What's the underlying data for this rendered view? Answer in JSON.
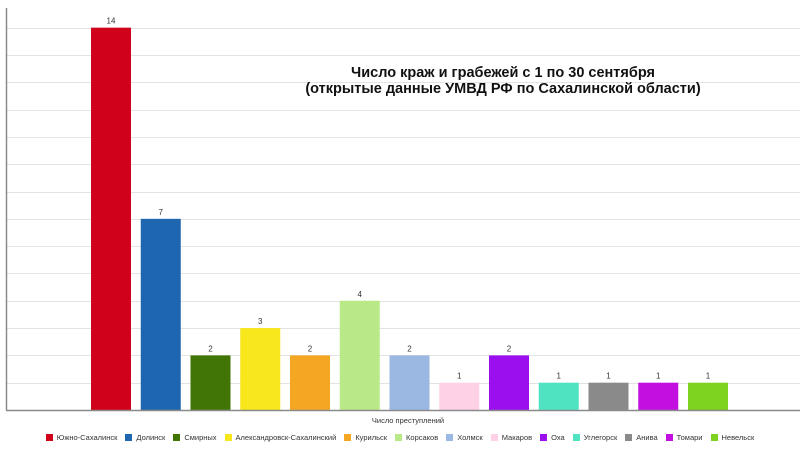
{
  "chart_data": {
    "type": "bar",
    "title": [
      "Число краж и грабежей с 1 по 30 сентября",
      "(открытые данные УМВД РФ по Сахалинской области)"
    ],
    "xlabel": "Число преступлений",
    "ylabel": "",
    "ylim": [
      0,
      14.5
    ],
    "grid": true,
    "legend": "bottom",
    "series": [
      {
        "name": "Южно-Сахалинск",
        "value": 14,
        "color": "#d0021b"
      },
      {
        "name": "Долинск",
        "value": 7,
        "color": "#1f66b0"
      },
      {
        "name": "Смирных",
        "value": 2,
        "color": "#417505"
      },
      {
        "name": "Александровск-Сахалинский",
        "value": 3,
        "color": "#f8e71c"
      },
      {
        "name": "Курильск",
        "value": 2,
        "color": "#f5a623"
      },
      {
        "name": "Корсаков",
        "value": 4,
        "color": "#b8e986"
      },
      {
        "name": "Холмск",
        "value": 2,
        "color": "#9ab8e2"
      },
      {
        "name": "Макаров",
        "value": 1,
        "color": "#ffd1e6"
      },
      {
        "name": "Оха",
        "value": 2,
        "color": "#9b0fef"
      },
      {
        "name": "Углегорск",
        "value": 1,
        "color": "#50e3c2"
      },
      {
        "name": "Анива",
        "value": 1,
        "color": "#8a8a8a"
      },
      {
        "name": "Томари",
        "value": 1,
        "color": "#c30fe0"
      },
      {
        "name": "Невельск",
        "value": 1,
        "color": "#7ed321"
      }
    ]
  }
}
